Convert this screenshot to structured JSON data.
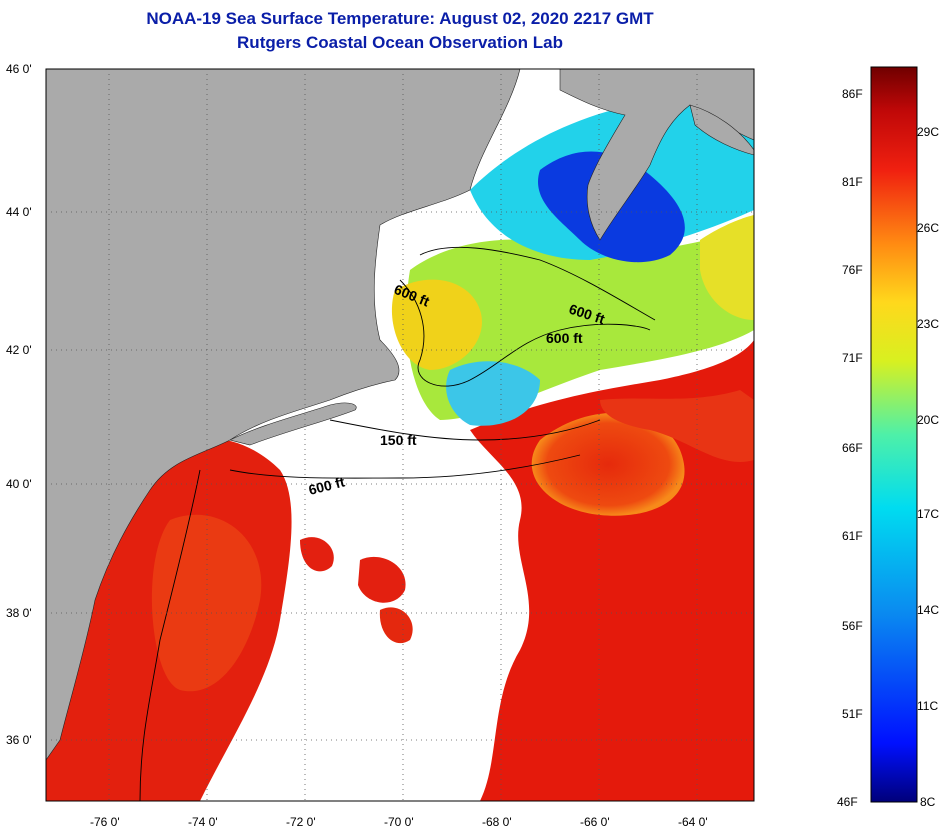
{
  "header": {
    "title": "NOAA-19 Sea Surface Temperature:  August 02, 2020 2217 GMT",
    "subtitle": "Rutgers Coastal Ocean Observation Lab"
  },
  "axes": {
    "lat_labels": [
      "46 0'",
      "44 0'",
      "42 0'",
      "40 0'",
      "38 0'",
      "36 0'"
    ],
    "lon_labels": [
      "-76 0'",
      "-74 0'",
      "-72 0'",
      "-70 0'",
      "-68 0'",
      "-66 0'",
      "-64 0'"
    ]
  },
  "isobaths": [
    "600 ft",
    "600 ft",
    "600 ft",
    "150 ft",
    "600 ft"
  ],
  "colorbar": {
    "fahrenheit": [
      "86F",
      "81F",
      "76F",
      "71F",
      "66F",
      "61F",
      "56F",
      "51F",
      "46F"
    ],
    "celsius": [
      "29C",
      "26C",
      "23C",
      "20C",
      "17C",
      "14C",
      "11C",
      "8C"
    ]
  },
  "colors": {
    "land": "#aaaaaa",
    "cloud": "#ffffff",
    "title": "#0a1ea8",
    "sst_hot": "#e41a0c",
    "sst_warm": "#f0d21a",
    "sst_mild": "#a8e83c",
    "sst_cool": "#22d2ea",
    "sst_cold": "#0a3ae0"
  }
}
